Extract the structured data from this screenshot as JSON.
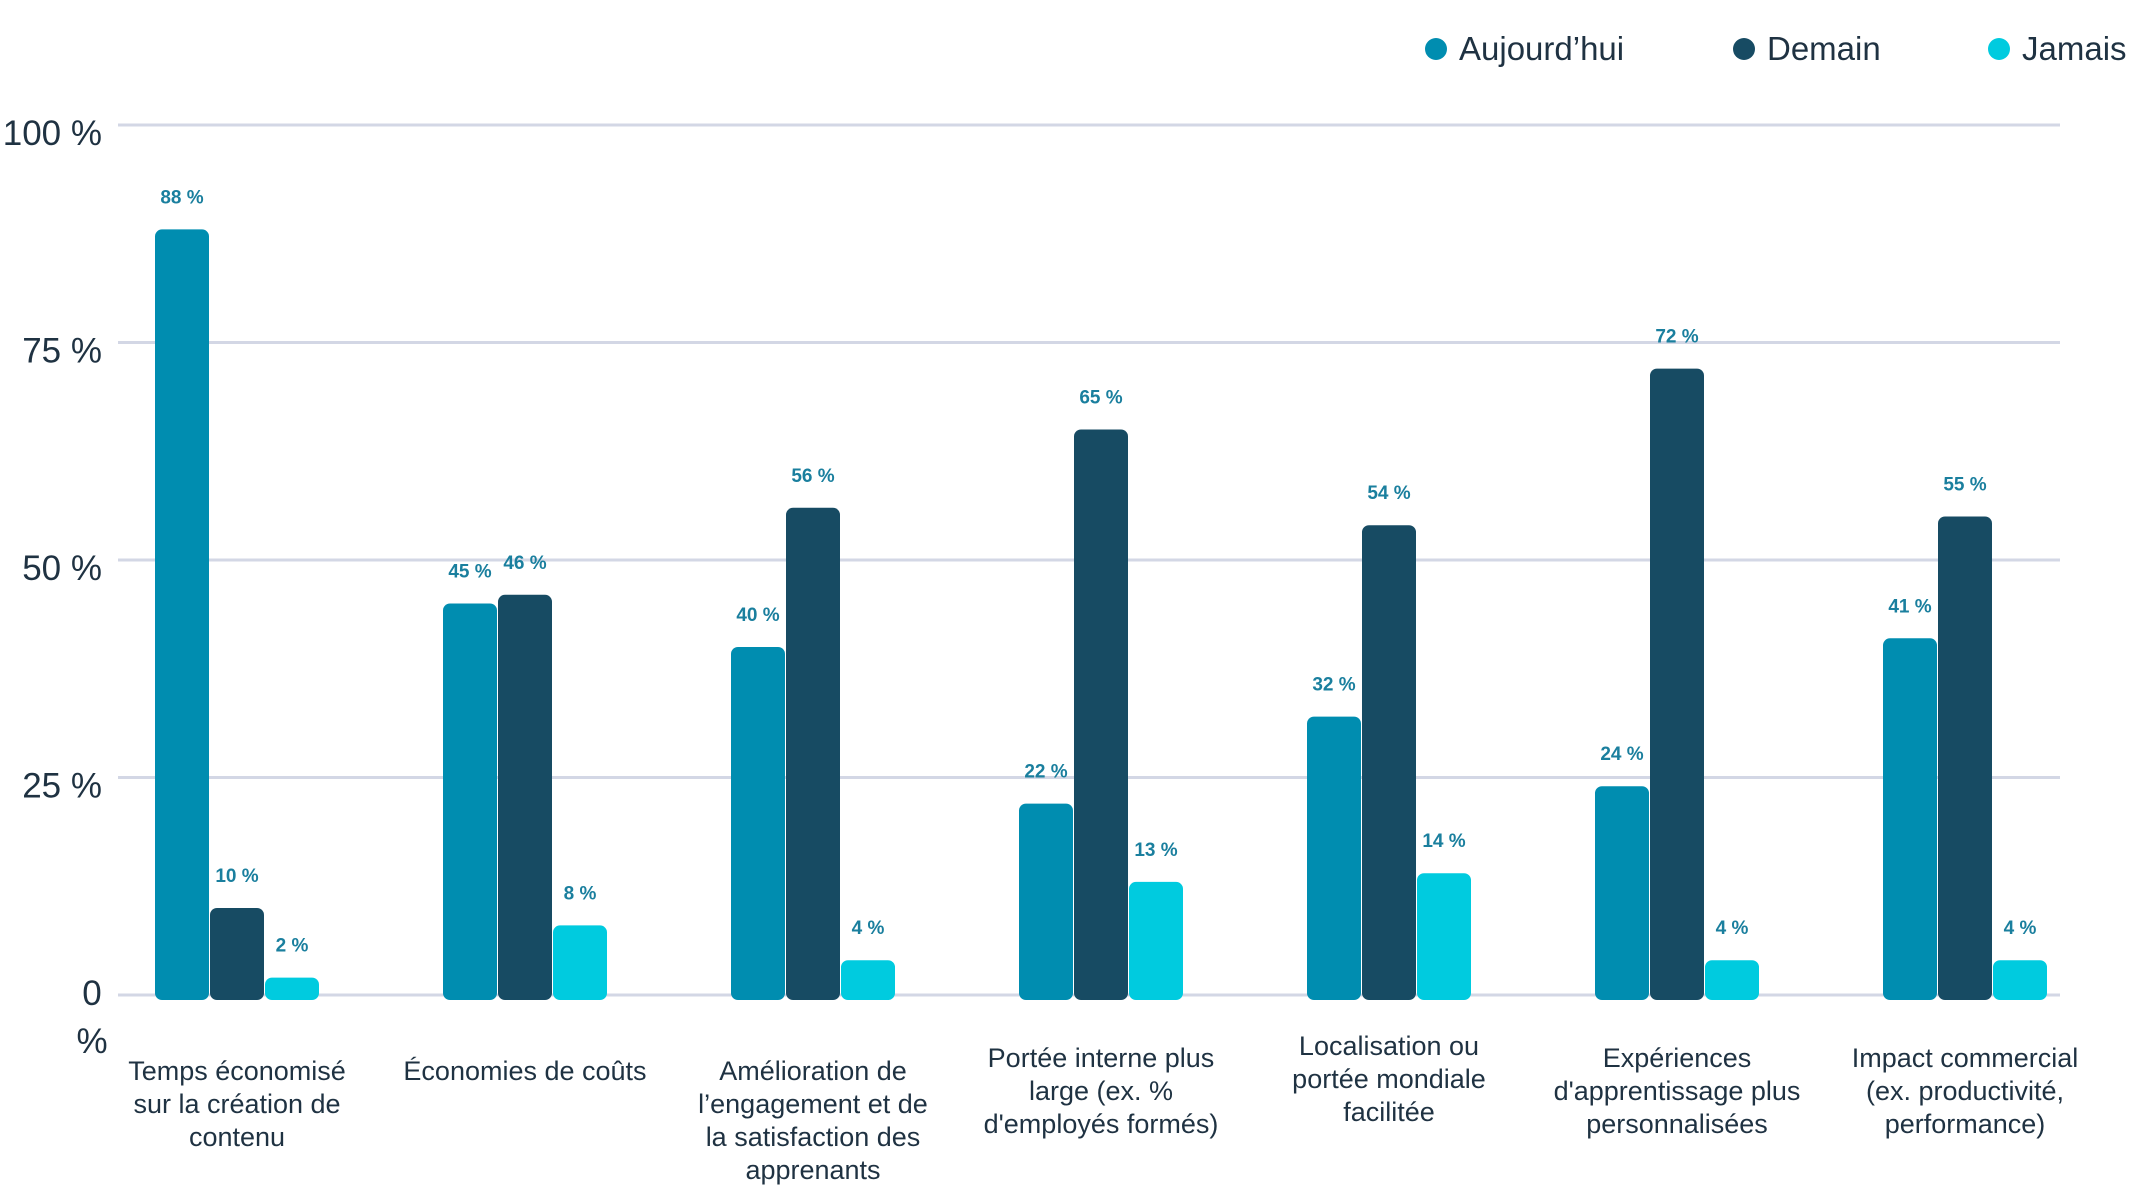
{
  "chart_data": {
    "type": "bar",
    "categories": [
      "Temps économisé sur la création de contenu",
      "Économies de coûts",
      "Amélioration de l’engagement et de la satisfaction des apprenants",
      "Portée interne plus large (ex. % d'employés formés)",
      "Localisation ou portée mondiale facilitée",
      "Expériences d'apprentissage plus personnalisées",
      "Impact commercial (ex. productivité, performance)"
    ],
    "series": [
      {
        "name": "Aujourd’hui",
        "color": "#008db0",
        "values": [
          88,
          45,
          40,
          22,
          32,
          24,
          41
        ],
        "labels": [
          "88 %",
          "45 %",
          "40 %",
          "22 %",
          "32 %",
          "24 %",
          "41 %"
        ]
      },
      {
        "name": "Demain",
        "color": "#174b63",
        "values": [
          10,
          46,
          56,
          65,
          54,
          72,
          55
        ],
        "labels": [
          "10 %",
          "46 %",
          "56 %",
          "65 %",
          "54 %",
          "72 %",
          "55 %"
        ]
      },
      {
        "name": "Jamais",
        "color": "#00cbdf",
        "values": [
          2,
          8,
          4,
          13,
          14,
          4,
          4
        ],
        "labels": [
          "2 %",
          "8 %",
          "4 %",
          "13 %",
          "14 %",
          "4 %",
          "4 %"
        ]
      }
    ],
    "yticks": [
      {
        "value": 0,
        "label": "0 %"
      },
      {
        "value": 25,
        "label": "25 %"
      },
      {
        "value": 50,
        "label": "50 %"
      },
      {
        "value": 75,
        "label": "75 %"
      },
      {
        "value": 100,
        "label": "100 %"
      }
    ],
    "ylim": [
      0,
      100
    ],
    "grid": true,
    "legend_position": "top-right",
    "gridline_color": "#d3d7e5",
    "label_color": "#1a7f9e",
    "text_color": "#1f3242"
  }
}
